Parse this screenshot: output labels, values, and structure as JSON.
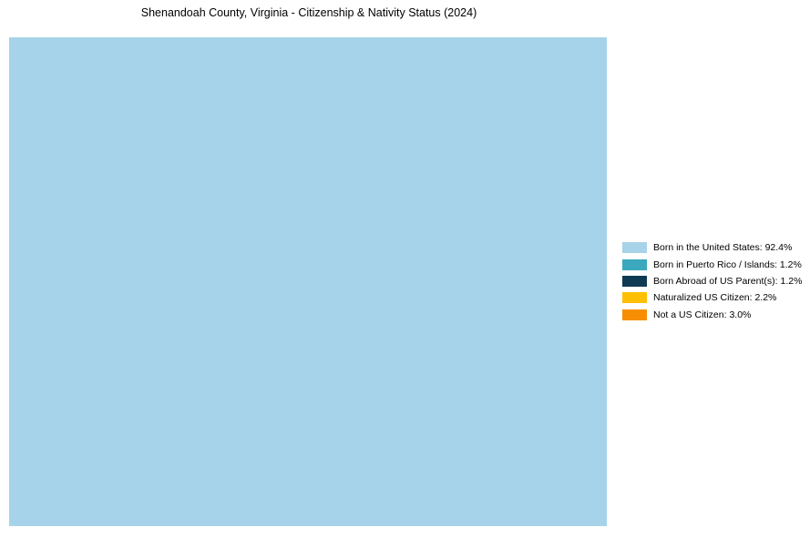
{
  "title": "Shenandoah County, Virginia - Citizenship & Nativity Status (2024)",
  "chart_data": {
    "type": "treemap",
    "title": "Shenandoah County, Virginia - Citizenship & Nativity Status (2024)",
    "unit": "%",
    "legend_position": "right",
    "layout": {
      "main_block": "Born in the United States",
      "side_column_order_top_to_bottom": [
        "Not a US Citizen",
        "Naturalized US Citizen",
        "Born Abroad of US Parent(s)",
        "Born in Puerto Rico / Islands"
      ]
    },
    "series": [
      {
        "name": "born-in-us",
        "label": "Born in the United States",
        "value": 92.4,
        "legend_label": "Born in the United States: 92.4%",
        "block_color": "#A6D3E9",
        "legend_color": "#A8D2E8"
      },
      {
        "name": "born-in-puerto-rico-islands",
        "label": "Born in Puerto Rico / Islands",
        "value": 1.2,
        "legend_label": "Born in Puerto Rico / Islands: 1.2%",
        "block_color": "#4FB2C6",
        "legend_color": "#3BA8BE"
      },
      {
        "name": "born-abroad-of-us-parents",
        "label": "Born Abroad of US Parent(s)",
        "value": 1.2,
        "legend_label": "Born Abroad of US Parent(s): 1.2%",
        "block_color": "#36596C",
        "legend_color": "#0E3A53"
      },
      {
        "name": "naturalized-us-citizen",
        "label": "Naturalized US Citizen",
        "value": 2.2,
        "legend_label": "Naturalized US Citizen: 2.2%",
        "block_color": "#FDC637",
        "legend_color": "#FEBF05"
      },
      {
        "name": "not-a-us-citizen",
        "label": "Not a US Citizen",
        "value": 3.0,
        "legend_label": "Not a US Citizen: 3.0%",
        "block_color": "#FAA134",
        "legend_color": "#F78E04"
      }
    ]
  }
}
